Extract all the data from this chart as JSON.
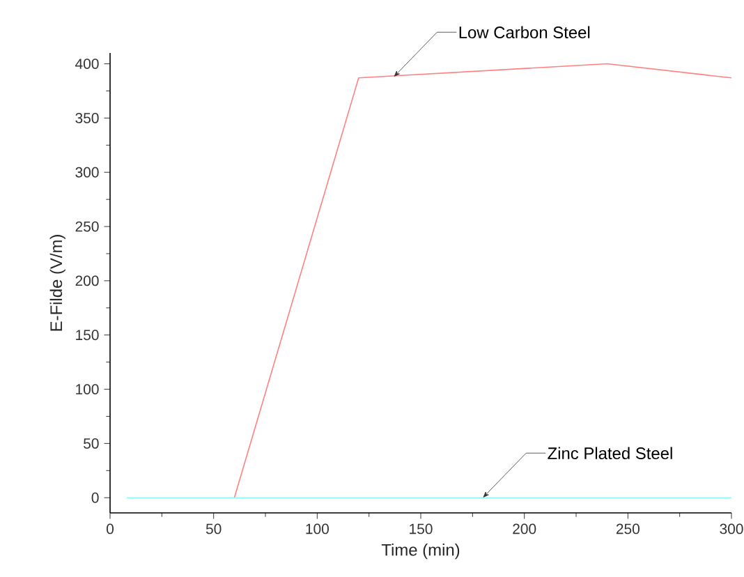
{
  "chart_data": {
    "type": "line",
    "xlabel": "Time (min)",
    "ylabel": "E-Filde (V/m)",
    "xlim": [
      0,
      300
    ],
    "xticks": [
      0,
      50,
      100,
      150,
      200,
      250,
      300
    ],
    "ylim": [
      -14,
      410
    ],
    "yticks": [
      0,
      50,
      100,
      150,
      200,
      250,
      300,
      350,
      400
    ],
    "series": [
      {
        "color": "#ff8080",
        "x": [
          60,
          120,
          240,
          300
        ],
        "values": [
          0,
          387,
          400,
          387
        ]
      },
      {
        "color": "#80ffff",
        "x": [
          8,
          60,
          120,
          180,
          240,
          300
        ],
        "values": [
          0,
          0,
          0,
          0,
          0,
          0
        ]
      }
    ],
    "annotations": [
      {
        "text": "Low Carbon Steel",
        "x": 137,
        "y": 388
      },
      {
        "text": "Zinc Plated Steel",
        "x": 180,
        "y": 0
      }
    ],
    "grid": false,
    "marker": "none",
    "line_style": "solid"
  }
}
